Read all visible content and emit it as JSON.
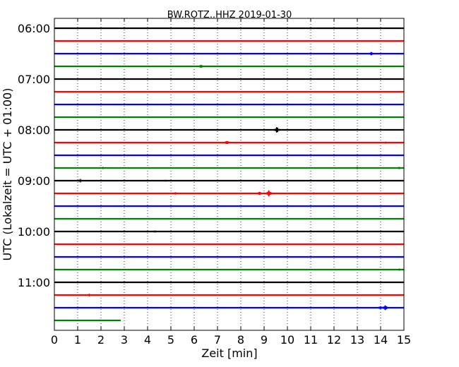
{
  "chart_data": {
    "type": "line",
    "title": "BW.ROTZ..HHZ 2019-01-30",
    "xlabel": "Zeit  [min]",
    "ylabel": "UTC (Lokalzeit = UTC + 01:00)",
    "xlim": [
      0,
      15
    ],
    "x_ticks": [
      "0",
      "1",
      "2",
      "3",
      "4",
      "5",
      "6",
      "7",
      "8",
      "9",
      "10",
      "11",
      "12",
      "13",
      "14",
      "15"
    ],
    "y_tick_labels": [
      "06:00",
      "07:00",
      "08:00",
      "09:00",
      "10:00",
      "11:00"
    ],
    "grid": "vertical dotted",
    "colors": [
      "#000000",
      "#ff0000",
      "#0000ff",
      "#008000"
    ],
    "traces": [
      {
        "start": "06:00",
        "color": "#000000",
        "end_min": 15,
        "events": []
      },
      {
        "start": "06:15",
        "color": "#ff0000",
        "end_min": 15,
        "events": []
      },
      {
        "start": "06:30",
        "color": "#0000ff",
        "end_min": 15,
        "events": [
          {
            "min": 13.6,
            "amp": 3
          }
        ]
      },
      {
        "start": "06:45",
        "color": "#008000",
        "end_min": 15,
        "events": [
          {
            "min": 6.3,
            "amp": 3
          }
        ]
      },
      {
        "start": "07:00",
        "color": "#000000",
        "end_min": 15,
        "events": []
      },
      {
        "start": "07:15",
        "color": "#ff0000",
        "end_min": 15,
        "events": []
      },
      {
        "start": "07:30",
        "color": "#0000ff",
        "end_min": 15,
        "events": []
      },
      {
        "start": "07:45",
        "color": "#008000",
        "end_min": 15,
        "events": []
      },
      {
        "start": "08:00",
        "color": "#000000",
        "end_min": 15,
        "events": [
          {
            "min": 9.55,
            "amp": 5
          }
        ]
      },
      {
        "start": "08:15",
        "color": "#ff0000",
        "end_min": 15,
        "events": [
          {
            "min": 7.4,
            "amp": 3
          },
          {
            "min": 14.2,
            "amp": 2
          }
        ]
      },
      {
        "start": "08:30",
        "color": "#0000ff",
        "end_min": 15,
        "events": []
      },
      {
        "start": "08:45",
        "color": "#008000",
        "end_min": 15,
        "events": [
          {
            "min": 2.1,
            "amp": 2
          },
          {
            "min": 13,
            "amp": 2
          },
          {
            "min": 14.8,
            "amp": 2
          }
        ]
      },
      {
        "start": "09:00",
        "color": "#000000",
        "end_min": 15,
        "events": [
          {
            "min": 1.1,
            "amp": 3
          },
          {
            "min": 4.8,
            "amp": 2
          }
        ]
      },
      {
        "start": "09:15",
        "color": "#ff0000",
        "end_min": 15,
        "events": [
          {
            "min": 5.2,
            "amp": 2
          },
          {
            "min": 8.8,
            "amp": 3
          },
          {
            "min": 9.2,
            "amp": 5
          },
          {
            "min": 11.1,
            "amp": 2
          }
        ]
      },
      {
        "start": "09:30",
        "color": "#0000ff",
        "end_min": 15,
        "events": []
      },
      {
        "start": "09:45",
        "color": "#008000",
        "end_min": 15,
        "events": []
      },
      {
        "start": "10:00",
        "color": "#000000",
        "end_min": 15,
        "events": [
          {
            "min": 4.3,
            "amp": 2
          }
        ]
      },
      {
        "start": "10:15",
        "color": "#ff0000",
        "end_min": 15,
        "events": []
      },
      {
        "start": "10:30",
        "color": "#0000ff",
        "end_min": 15,
        "events": []
      },
      {
        "start": "10:45",
        "color": "#008000",
        "end_min": 15,
        "events": [
          {
            "min": 14.8,
            "amp": 2
          }
        ]
      },
      {
        "start": "11:00",
        "color": "#000000",
        "end_min": 15,
        "events": []
      },
      {
        "start": "11:15",
        "color": "#ff0000",
        "end_min": 15,
        "events": [
          {
            "min": 1.5,
            "amp": 2
          }
        ]
      },
      {
        "start": "11:30",
        "color": "#0000ff",
        "end_min": 15,
        "events": [
          {
            "min": 14.0,
            "amp": 3
          },
          {
            "min": 14.2,
            "amp": 4
          }
        ]
      },
      {
        "start": "11:45",
        "color": "#008000",
        "end_min": 2.85,
        "events": []
      }
    ]
  }
}
